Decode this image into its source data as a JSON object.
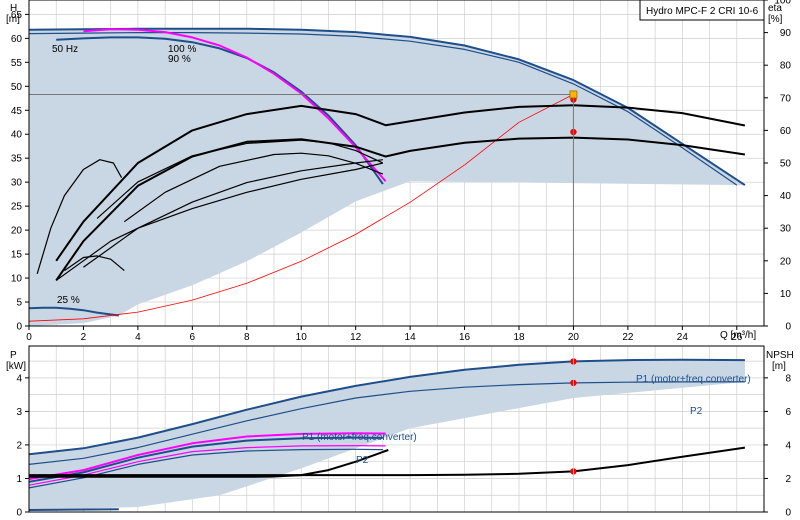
{
  "chart_data": [
    {
      "type": "line",
      "title": "Hydro MPC-F 2 CRI 10-6",
      "y_label": "H",
      "y_unit": "[m]",
      "y2_label": "eta",
      "y2_unit": "[%]",
      "x_label": "Q [m³/h]",
      "xlim": [
        0,
        27
      ],
      "ylim": [
        0,
        68
      ],
      "y2lim": [
        0,
        100
      ],
      "x_ticks": [
        0,
        2,
        4,
        6,
        8,
        10,
        12,
        14,
        16,
        18,
        20,
        22,
        24,
        26
      ],
      "y_ticks": [
        0,
        5,
        10,
        15,
        20,
        25,
        30,
        35,
        40,
        45,
        50,
        55,
        60,
        65
      ],
      "y2_ticks": [
        0,
        10,
        20,
        30,
        40,
        50,
        60,
        70,
        80,
        90,
        100
      ],
      "grid": true,
      "annotations": [
        "50 Hz",
        "100 %",
        "90 %",
        "25 %"
      ],
      "duty_point": {
        "x": 20,
        "y": 48.3
      },
      "series": [
        {
          "color": "#1e4f8a",
          "role": "head_100_outer",
          "x": [
            0,
            2,
            4,
            6,
            8,
            10,
            12,
            14,
            16,
            18,
            20,
            22,
            24,
            26.3
          ],
          "y": [
            61.8,
            61.9,
            62.0,
            62.0,
            62.0,
            61.8,
            61.3,
            60.3,
            58.5,
            55.6,
            51.3,
            45.5,
            38.0,
            29.4
          ]
        },
        {
          "color": "#1e4f8a",
          "role": "head_100_inner",
          "x": [
            0,
            2,
            4,
            6,
            8,
            10,
            12,
            14,
            16,
            18,
            20,
            22,
            24,
            26
          ],
          "y": [
            61.0,
            61.1,
            61.2,
            61.2,
            61.1,
            60.9,
            60.4,
            59.4,
            57.7,
            55.0,
            50.5,
            44.7,
            37.2,
            29.4
          ]
        },
        {
          "color": "#1e4f8a",
          "role": "head_90",
          "x": [
            1,
            2,
            3,
            4,
            5,
            6,
            7,
            8,
            9,
            10,
            11,
            12,
            13
          ],
          "y": [
            59.7,
            60.0,
            60.2,
            60.2,
            59.9,
            59.2,
            57.9,
            55.9,
            52.9,
            48.9,
            43.9,
            37.7,
            29.6
          ]
        },
        {
          "color": "#ff00ff",
          "role": "speed_limit",
          "x": [
            2,
            3,
            4,
            5,
            6,
            7,
            8,
            9,
            10,
            11,
            12,
            13.1
          ],
          "y": [
            61.5,
            61.9,
            61.8,
            61.3,
            60.2,
            58.5,
            56.0,
            52.6,
            48.5,
            43.3,
            37.3,
            30.2
          ]
        },
        {
          "color": "#1e4f8a",
          "role": "head_25",
          "x": [
            0,
            0.5,
            1,
            1.5,
            2,
            2.5,
            3.3
          ],
          "y": [
            3.7,
            3.8,
            3.8,
            3.6,
            3.3,
            2.8,
            2.2
          ]
        },
        {
          "color": "#ff0000",
          "role": "system_curve",
          "x": [
            0,
            2,
            4,
            6,
            8,
            10,
            12,
            14,
            16,
            18,
            20
          ],
          "y": [
            1.0,
            1.5,
            2.9,
            5.4,
            8.9,
            13.5,
            19.1,
            25.8,
            33.6,
            42.5,
            48.3
          ]
        },
        {
          "color": "#000000",
          "role": "eta_total_100",
          "x": [
            1,
            2,
            4,
            6,
            8,
            10,
            12,
            13.1,
            14,
            16,
            18,
            20,
            22,
            24,
            26.3
          ],
          "y2": [
            20,
            32,
            50,
            60,
            65,
            67.5,
            65,
            61.6,
            62.8,
            65.5,
            67.2,
            67.7,
            67.0,
            65.3,
            61.5
          ]
        },
        {
          "color": "#000000",
          "role": "eta_total_90",
          "x": [
            1,
            2,
            4,
            6,
            8,
            10,
            12,
            13.1,
            14,
            16,
            18,
            20,
            22,
            24,
            26.3
          ],
          "y2": [
            14,
            26,
            43,
            52,
            56.5,
            57.3,
            55.0,
            52.0,
            53.7,
            56.2,
            57.5,
            57.8,
            57.2,
            55.5,
            52.6
          ]
        },
        {
          "color": "#000000",
          "role": "eta_sub_upper",
          "x": [
            2.5,
            4,
            6,
            8,
            10,
            11,
            12,
            13
          ],
          "y2": [
            33,
            44.2,
            52.2,
            56.0,
            57.0,
            56.2,
            53.8,
            50.0
          ]
        },
        {
          "color": "#000000",
          "role": "eta_sub_lower",
          "x": [
            3.5,
            5,
            7,
            9,
            10,
            11,
            12,
            13
          ],
          "y2": [
            32,
            41,
            49,
            52.6,
            53.0,
            52.2,
            49.9,
            46.6
          ]
        },
        {
          "color": "#000000",
          "role": "eta_sub_mid",
          "x": [
            2,
            4,
            6,
            8,
            10,
            12,
            13
          ],
          "y2": [
            18,
            30,
            38,
            44,
            47.6,
            50,
            51
          ]
        },
        {
          "color": "#000000",
          "role": "eta_sub_low",
          "x": [
            1,
            2,
            3,
            4,
            6,
            8,
            10,
            12,
            13
          ],
          "y2": [
            14,
            20,
            26,
            30,
            36,
            41,
            45,
            48,
            50
          ]
        },
        {
          "color": "#000000",
          "role": "eta_tiny",
          "x": [
            1.3,
            2,
            2.5,
            3,
            3.5
          ],
          "y2": [
            17,
            21,
            21.5,
            20.5,
            17
          ]
        },
        {
          "color": "#000000",
          "role": "eta_small_speed",
          "x": [
            0.3,
            0.8,
            1.3,
            2.0,
            2.6,
            3.1,
            3.4
          ],
          "y2": [
            16,
            30,
            40,
            48,
            51,
            50,
            45.5
          ]
        }
      ],
      "markers": [
        {
          "x": 20,
          "y2": 69.5,
          "color": "#ff0000"
        },
        {
          "x": 20,
          "y2": 59.5,
          "color": "#ff0000"
        }
      ]
    },
    {
      "type": "line",
      "y_label": "P",
      "y_unit": "[kW]",
      "y2_label": "NPSH",
      "y2_unit": "[m]",
      "xlim": [
        0,
        27
      ],
      "ylim": [
        0,
        4.95
      ],
      "y2lim": [
        0,
        9.9
      ],
      "y_ticks": [
        0,
        1,
        2,
        3,
        4
      ],
      "y2_ticks": [
        0,
        2,
        4,
        6,
        8
      ],
      "grid": true,
      "annotations": [
        "P1 (motor+freq.converter)",
        "P2",
        "P1 (motor+freq.converter)",
        "P2"
      ],
      "series": [
        {
          "color": "#1e4f8a",
          "role": "P1_100",
          "x": [
            0,
            2,
            4,
            6,
            8,
            10,
            12,
            14,
            16,
            18,
            20,
            22,
            24,
            26.3
          ],
          "y": [
            1.72,
            1.9,
            2.22,
            2.62,
            3.05,
            3.44,
            3.76,
            4.03,
            4.24,
            4.39,
            4.49,
            4.53,
            4.54,
            4.53
          ]
        },
        {
          "color": "#1e4f8a",
          "role": "P2_100",
          "x": [
            0,
            2,
            4,
            6,
            8,
            10,
            12,
            14,
            16,
            18,
            20,
            22,
            24,
            26.3
          ],
          "y": [
            1.42,
            1.6,
            1.92,
            2.32,
            2.72,
            3.08,
            3.4,
            3.6,
            3.72,
            3.8,
            3.85,
            3.87,
            3.88,
            3.88
          ]
        },
        {
          "color": "#ff00ff",
          "role": "P1_limit",
          "x": [
            0,
            2,
            4,
            6,
            8,
            10,
            12,
            13.1
          ],
          "y": [
            0.98,
            1.25,
            1.7,
            2.05,
            2.25,
            2.33,
            2.35,
            2.34
          ]
        },
        {
          "color": "#ff00ff",
          "role": "P2_limit",
          "x": [
            0,
            2,
            4,
            6,
            8,
            10,
            12,
            13.1
          ],
          "y": [
            0.8,
            1.1,
            1.5,
            1.8,
            1.92,
            1.97,
            1.98,
            1.97
          ]
        },
        {
          "color": "#1e4f8a",
          "role": "P1_90",
          "x": [
            0,
            2,
            4,
            6,
            8,
            10,
            12,
            13
          ],
          "y": [
            0.9,
            1.18,
            1.62,
            1.95,
            2.13,
            2.2,
            2.22,
            2.21
          ]
        },
        {
          "color": "#1e4f8a",
          "role": "P2_90",
          "x": [
            0,
            2,
            4,
            6,
            8,
            10,
            12,
            13
          ],
          "y": [
            0.72,
            1.02,
            1.42,
            1.7,
            1.82,
            1.86,
            1.87,
            1.86
          ]
        },
        {
          "color": "#1e4f8a",
          "role": "P1_25",
          "x": [
            0,
            3.3
          ],
          "y": [
            0.06,
            0.08
          ]
        },
        {
          "color": "#000000",
          "role": "NPSH_100",
          "x": [
            0,
            2,
            4,
            6,
            8,
            10,
            12,
            14,
            16,
            18,
            20,
            22,
            24,
            26.3
          ],
          "y2": [
            2.2,
            2.2,
            2.2,
            2.2,
            2.2,
            2.2,
            2.2,
            2.2,
            2.22,
            2.28,
            2.42,
            2.8,
            3.3,
            3.84
          ]
        },
        {
          "color": "#000000",
          "role": "NPSH_90",
          "x": [
            0,
            4,
            8,
            9,
            10,
            11,
            12,
            13.2
          ],
          "y2": [
            2.1,
            2.1,
            2.1,
            2.12,
            2.2,
            2.5,
            3.0,
            3.7
          ]
        }
      ],
      "markers": [
        {
          "x": 20,
          "y": 4.49,
          "color": "#ff0000"
        },
        {
          "x": 20,
          "y": 3.85,
          "color": "#ff0000"
        },
        {
          "x": 20,
          "y2": 2.42,
          "color": "#ff0000"
        }
      ]
    }
  ]
}
